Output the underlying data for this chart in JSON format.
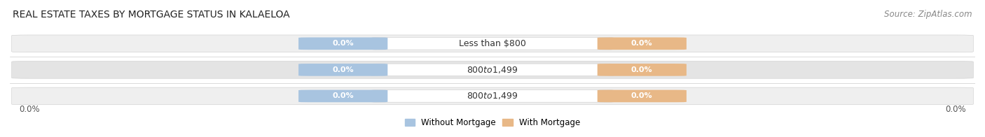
{
  "title": "REAL ESTATE TAXES BY MORTGAGE STATUS IN KALAELOA",
  "source": "Source: ZipAtlas.com",
  "categories": [
    "Less than $800",
    "$800 to $1,499",
    "$800 to $1,499"
  ],
  "without_mortgage": [
    0.0,
    0.0,
    0.0
  ],
  "with_mortgage": [
    0.0,
    0.0,
    0.0
  ],
  "bar_color_without": "#a8c4e0",
  "bar_color_with": "#e8b887",
  "bg_color_bar_light": "#efefef",
  "bg_color_bar_dark": "#e4e4e4",
  "title_fontsize": 10,
  "source_fontsize": 8.5,
  "label_fontsize": 9,
  "value_fontsize": 8,
  "legend_without": "Without Mortgage",
  "legend_with": "With Mortgage",
  "ylim_left": "0.0%",
  "ylim_right": "0.0%"
}
